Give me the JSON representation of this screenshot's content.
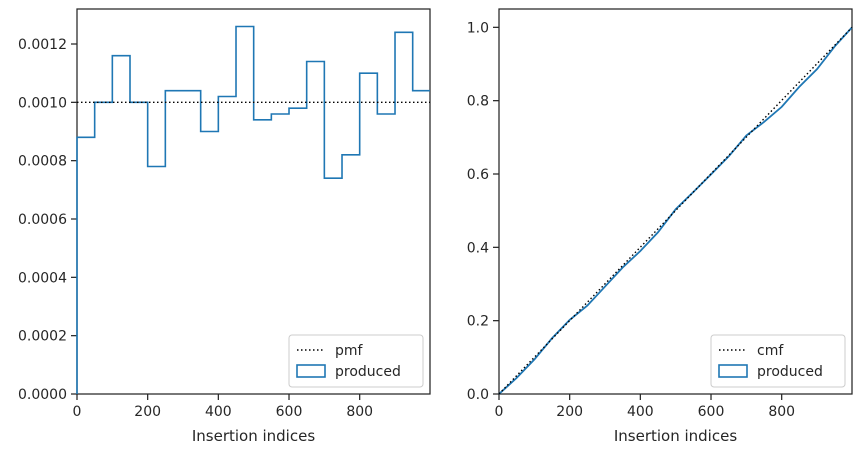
{
  "chart_data": [
    {
      "type": "histogram",
      "xlabel": "Insertion indices",
      "ylabel": "",
      "xlim": [
        0,
        999
      ],
      "ylim": [
        0,
        0.00132
      ],
      "xticks": [
        0,
        200,
        400,
        600,
        800
      ],
      "yticks": [
        0,
        0.0002,
        0.0004,
        0.0006,
        0.0008,
        0.001,
        0.0012
      ],
      "ytick_labels": [
        "0.0000",
        "0.0002",
        "0.0004",
        "0.0006",
        "0.0008",
        "0.0010",
        "0.0012"
      ],
      "xtick_labels": [
        "0",
        "200",
        "400",
        "600",
        "800"
      ],
      "legend_position": "lower-right",
      "grid": false,
      "series": [
        {
          "name": "pmf",
          "style": "dotted",
          "color": "#000000",
          "x": [
            0,
            999
          ],
          "y": [
            0.001,
            0.001
          ]
        },
        {
          "name": "produced",
          "style": "step",
          "color": "#1f77b4",
          "bin_edges": [
            0,
            50,
            100,
            150,
            200,
            250,
            300,
            350,
            400,
            450,
            500,
            550,
            600,
            650,
            700,
            750,
            800,
            850,
            900,
            950,
            1000
          ],
          "values": [
            0.00088,
            0.001,
            0.00116,
            0.001,
            0.00078,
            0.00104,
            0.00104,
            0.0009,
            0.00102,
            0.00126,
            0.00094,
            0.00096,
            0.00098,
            0.00114,
            0.00074,
            0.00082,
            0.0011,
            0.00096,
            0.00124,
            0.00104
          ]
        }
      ]
    },
    {
      "type": "line",
      "xlabel": "Insertion indices",
      "ylabel": "",
      "xlim": [
        0,
        999
      ],
      "ylim": [
        0,
        1.05
      ],
      "xticks": [
        0,
        200,
        400,
        600,
        800
      ],
      "yticks": [
        0,
        0.2,
        0.4,
        0.6,
        0.8,
        1.0
      ],
      "ytick_labels": [
        "0.0",
        "0.2",
        "0.4",
        "0.6",
        "0.8",
        "1.0"
      ],
      "xtick_labels": [
        "0",
        "200",
        "400",
        "600",
        "800"
      ],
      "legend_position": "lower-right",
      "grid": false,
      "series": [
        {
          "name": "cmf",
          "style": "dotted",
          "color": "#000000",
          "x": [
            0,
            999
          ],
          "y": [
            0,
            1.0
          ]
        },
        {
          "name": "produced",
          "style": "line",
          "color": "#1f77b4",
          "x": [
            0,
            50,
            100,
            150,
            200,
            250,
            300,
            350,
            400,
            450,
            500,
            550,
            600,
            650,
            700,
            750,
            800,
            850,
            900,
            950,
            999
          ],
          "y": [
            0,
            0.044,
            0.094,
            0.152,
            0.202,
            0.241,
            0.293,
            0.345,
            0.39,
            0.441,
            0.504,
            0.551,
            0.599,
            0.648,
            0.705,
            0.742,
            0.783,
            0.838,
            0.886,
            0.948,
            1.0
          ]
        }
      ]
    }
  ]
}
